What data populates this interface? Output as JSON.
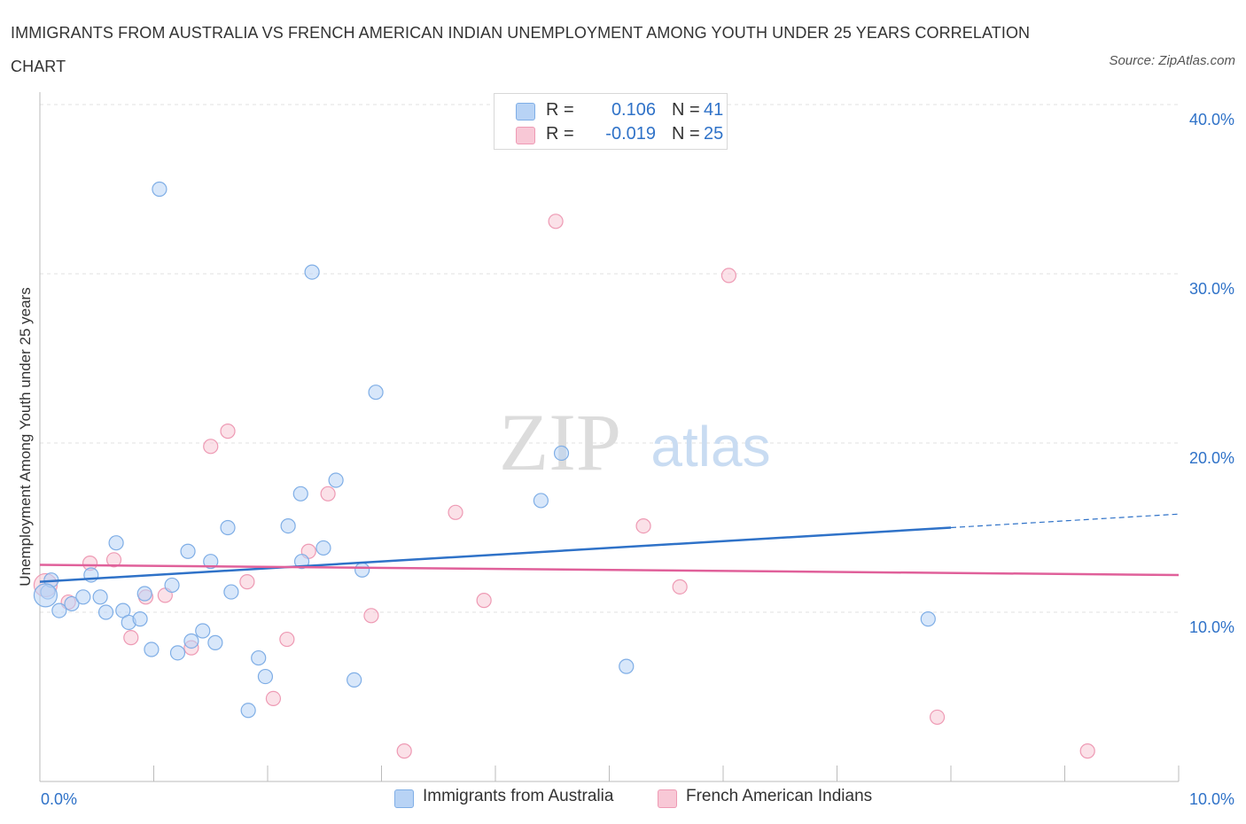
{
  "title": "IMMIGRANTS FROM AUSTRALIA VS FRENCH AMERICAN INDIAN UNEMPLOYMENT AMONG YOUTH UNDER 25 YEARS CORRELATION CHART",
  "source": "Source: ZipAtlas.com",
  "watermark": {
    "zip": "ZIP",
    "atlas": "atlas"
  },
  "legend_top": {
    "rows": [
      {
        "r_label": "R =",
        "r_value": "0.106",
        "n_label": "N =",
        "n_value": "41",
        "color": "#b8d3f5",
        "border": "#7faee6"
      },
      {
        "r_label": "R =",
        "r_value": "-0.019",
        "n_label": "N =",
        "n_value": "25",
        "color": "#f8c8d6",
        "border": "#ee9ab4"
      }
    ]
  },
  "legend_bottom": [
    {
      "label": "Immigrants from Australia",
      "color": "#b8d3f5",
      "border": "#7faee6"
    },
    {
      "label": "French American Indians",
      "color": "#f8c8d6",
      "border": "#ee9ab4"
    }
  ],
  "chart_data": {
    "type": "scatter",
    "title": "IMMIGRANTS FROM AUSTRALIA VS FRENCH AMERICAN INDIAN UNEMPLOYMENT AMONG YOUTH UNDER 25 YEARS CORRELATION CHART",
    "xlabel": "",
    "ylabel": "Unemployment Among Youth under 25 years",
    "xlim": [
      0,
      10
    ],
    "ylim": [
      0,
      40
    ],
    "x_tick_labels": [
      "0.0%",
      "10.0%"
    ],
    "y_tick_values": [
      10,
      20,
      30,
      40
    ],
    "y_tick_labels": [
      "10.0%",
      "20.0%",
      "30.0%",
      "40.0%"
    ],
    "grid": true,
    "legend_position": "top-center",
    "colors": {
      "series1": "#2f72c8",
      "series2": "#e0609a",
      "series1_fill": "#b8d3f5",
      "series2_fill": "#f8c8d6",
      "axis_text": "#2f72c8"
    },
    "series": [
      {
        "name": "Immigrants from Australia",
        "r": 0.106,
        "n": 41,
        "trend": {
          "x0": 0.0,
          "y0": 11.8,
          "x1": 8.0,
          "y1": 15.0,
          "dashed_to_x": 10.0,
          "dashed_to_y": 15.8
        },
        "points": [
          [
            0.07,
            11.2
          ],
          [
            0.1,
            11.9
          ],
          [
            0.17,
            10.1
          ],
          [
            0.28,
            10.5
          ],
          [
            0.38,
            10.9
          ],
          [
            0.45,
            12.2
          ],
          [
            0.53,
            10.9
          ],
          [
            0.58,
            10.0
          ],
          [
            0.67,
            14.1
          ],
          [
            0.73,
            10.1
          ],
          [
            0.78,
            9.4
          ],
          [
            0.88,
            9.6
          ],
          [
            0.92,
            11.1
          ],
          [
            0.98,
            7.8
          ],
          [
            1.05,
            35.0
          ],
          [
            1.16,
            11.6
          ],
          [
            1.21,
            7.6
          ],
          [
            1.3,
            13.6
          ],
          [
            1.33,
            8.3
          ],
          [
            1.43,
            8.9
          ],
          [
            1.5,
            13.0
          ],
          [
            1.54,
            8.2
          ],
          [
            1.65,
            15.0
          ],
          [
            1.68,
            11.2
          ],
          [
            1.83,
            4.2
          ],
          [
            1.92,
            7.3
          ],
          [
            1.98,
            6.2
          ],
          [
            2.18,
            15.1
          ],
          [
            2.29,
            17.0
          ],
          [
            2.3,
            13.0
          ],
          [
            2.39,
            30.1
          ],
          [
            2.49,
            13.8
          ],
          [
            2.6,
            17.8
          ],
          [
            2.76,
            6.0
          ],
          [
            2.83,
            12.5
          ],
          [
            2.95,
            23.0
          ],
          [
            4.4,
            16.6
          ],
          [
            4.58,
            19.4
          ],
          [
            5.15,
            6.8
          ],
          [
            7.8,
            9.6
          ],
          [
            0.05,
            11.0
          ]
        ]
      },
      {
        "name": "French American Indians",
        "r": -0.019,
        "n": 25,
        "trend": {
          "x0": 0.0,
          "y0": 12.8,
          "x1": 10.0,
          "y1": 12.2
        },
        "points": [
          [
            0.05,
            11.6
          ],
          [
            0.25,
            10.6
          ],
          [
            0.44,
            12.9
          ],
          [
            0.65,
            13.1
          ],
          [
            0.8,
            8.5
          ],
          [
            0.93,
            10.9
          ],
          [
            1.1,
            11.0
          ],
          [
            1.33,
            7.9
          ],
          [
            1.5,
            19.8
          ],
          [
            1.65,
            20.7
          ],
          [
            1.82,
            11.8
          ],
          [
            2.05,
            4.9
          ],
          [
            2.17,
            8.4
          ],
          [
            2.36,
            13.6
          ],
          [
            2.53,
            17.0
          ],
          [
            2.91,
            9.8
          ],
          [
            3.2,
            1.8
          ],
          [
            3.65,
            15.9
          ],
          [
            3.9,
            10.7
          ],
          [
            4.53,
            33.1
          ],
          [
            5.3,
            15.1
          ],
          [
            5.62,
            11.5
          ],
          [
            6.05,
            29.9
          ],
          [
            7.88,
            3.8
          ],
          [
            9.2,
            1.8
          ]
        ]
      }
    ]
  }
}
